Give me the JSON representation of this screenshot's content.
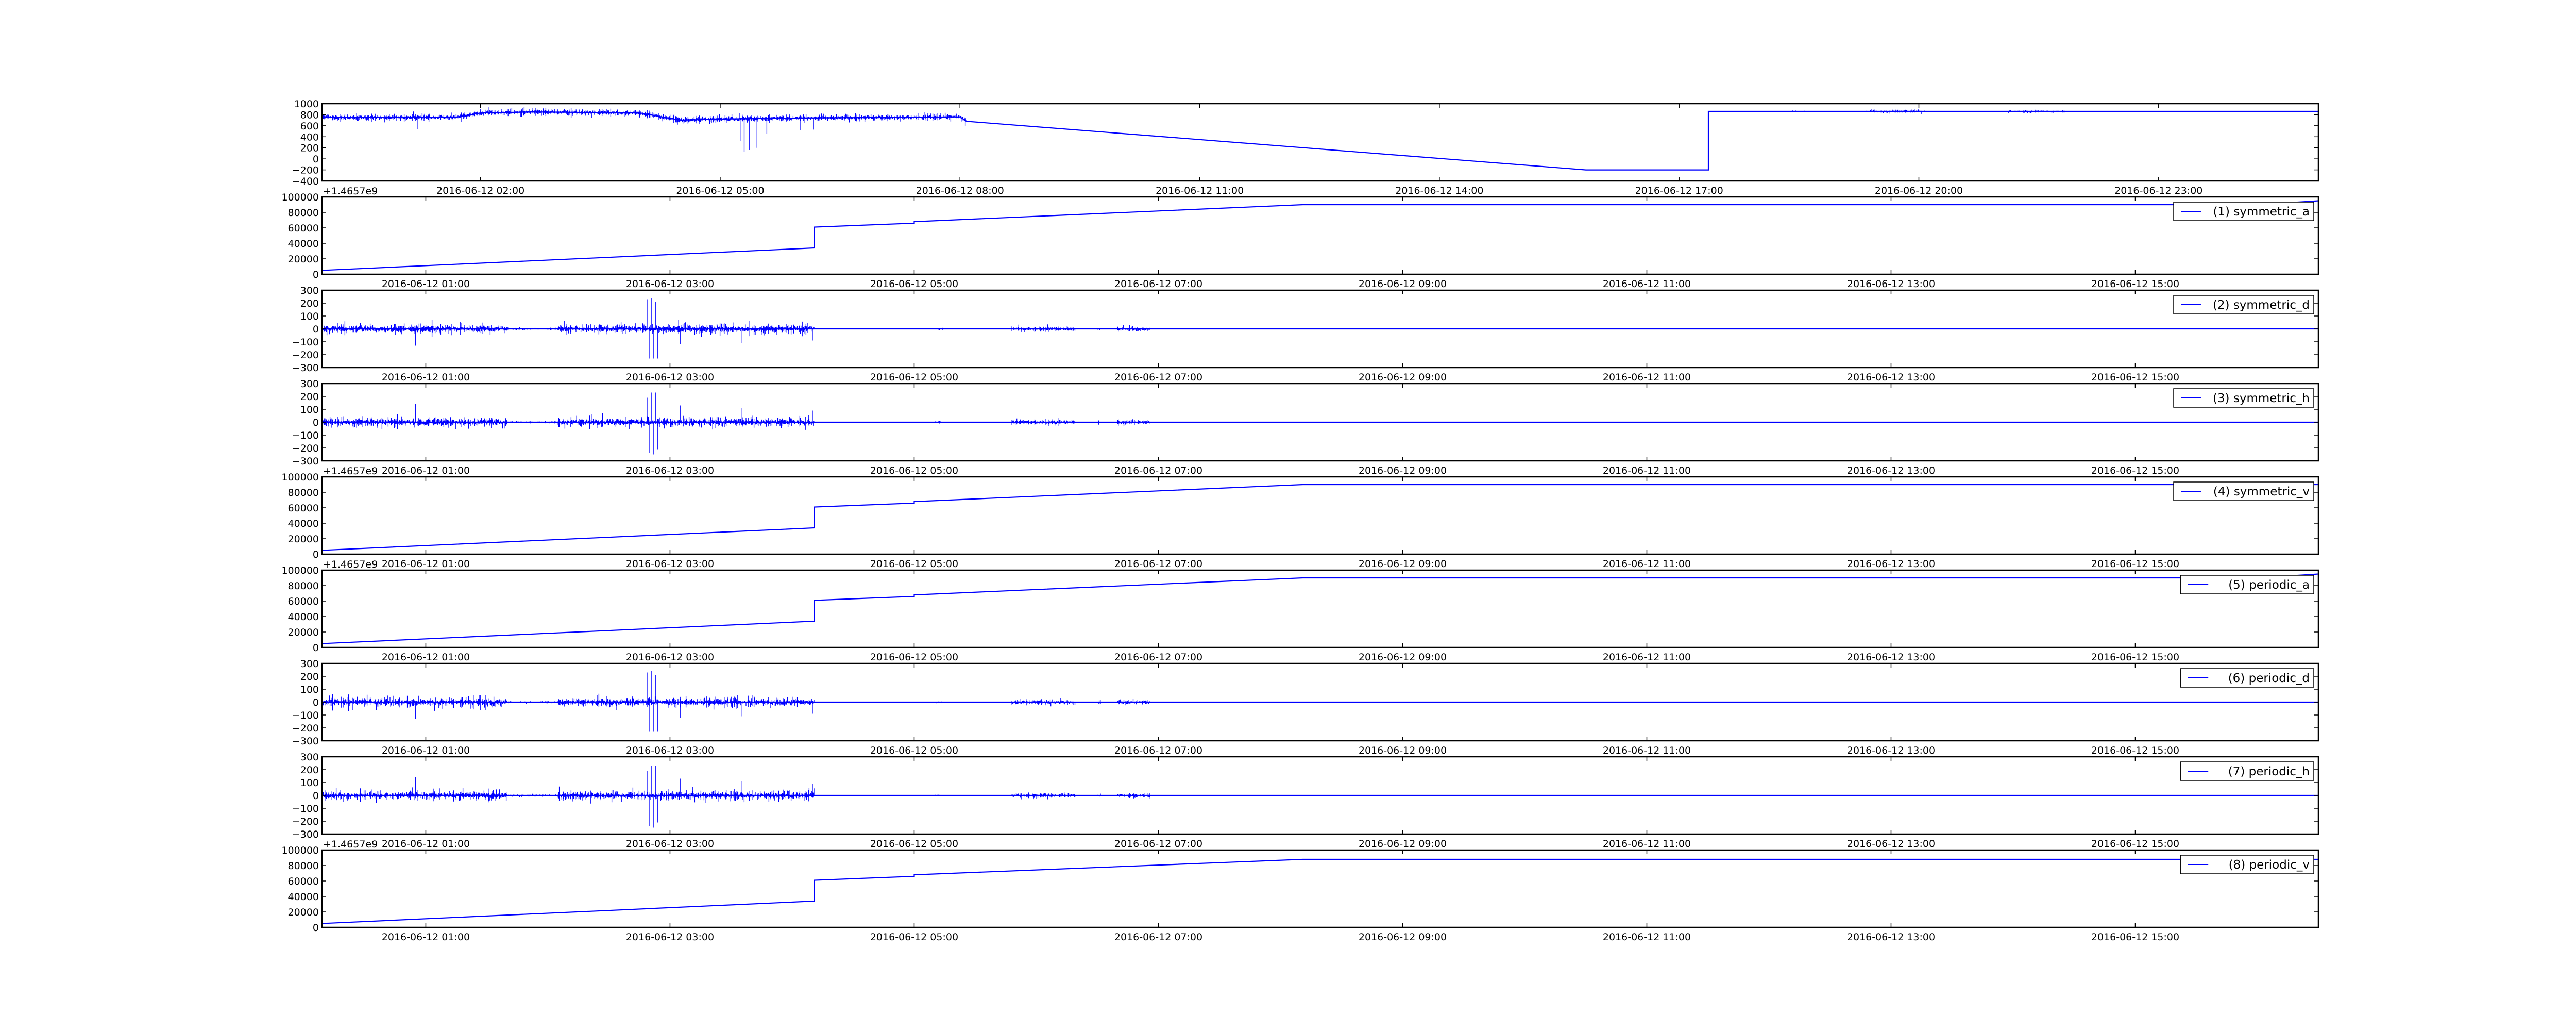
{
  "chart_data": [
    {
      "type": "line",
      "legend": "",
      "color": "#0000ff",
      "xlim": [
        "2016-06-12 00:01",
        "2016-06-13 01:00"
      ],
      "ylim": [
        -400,
        1000
      ],
      "xticks": [
        "2016-06-12 02:00",
        "2016-06-12 05:00",
        "2016-06-12 08:00",
        "2016-06-12 11:00",
        "2016-06-12 14:00",
        "2016-06-12 17:00",
        "2016-06-12 20:00",
        "2016-06-12 23:00"
      ],
      "yticks": [
        -400,
        -200,
        0,
        200,
        400,
        600,
        800,
        1000
      ],
      "offset_text": "",
      "trend": [
        [
          "2016-06-12 00:01",
          750
        ],
        [
          "2016-06-12 01:40",
          750
        ],
        [
          "2016-06-12 02:00",
          830
        ],
        [
          "2016-06-12 02:40",
          850
        ],
        [
          "2016-06-12 04:00",
          830
        ],
        [
          "2016-06-12 04:30",
          700
        ],
        [
          "2016-06-12 05:00",
          720
        ],
        [
          "2016-06-12 06:00",
          740
        ],
        [
          "2016-06-12 08:00",
          760
        ],
        [
          "2016-06-12 08:05",
          680
        ],
        [
          "2016-06-12 15:50",
          -200
        ],
        [
          "2016-06-12 17:22",
          -200
        ],
        [
          "2016-06-12 17:22",
          860
        ],
        [
          "2016-06-13 01:00",
          860
        ]
      ],
      "noise": [
        [
          "2016-06-12 00:01",
          "2016-06-12 08:05",
          55
        ],
        [
          "2016-06-12 18:25",
          "2016-06-12 18:40",
          12
        ],
        [
          "2016-06-12 19:20",
          "2016-06-12 20:05",
          30
        ],
        [
          "2016-06-12 20:40",
          "2016-06-12 20:45",
          10
        ],
        [
          "2016-06-12 21:05",
          "2016-06-12 21:50",
          22
        ]
      ],
      "spikes": [
        [
          "2016-06-12 01:13",
          540
        ],
        [
          "2016-06-12 04:32",
          640
        ],
        [
          "2016-06-12 05:15",
          320
        ],
        [
          "2016-06-12 05:18",
          130
        ],
        [
          "2016-06-12 05:22",
          160
        ],
        [
          "2016-06-12 05:27",
          200
        ],
        [
          "2016-06-12 05:35",
          450
        ],
        [
          "2016-06-12 06:00",
          520
        ],
        [
          "2016-06-12 06:10",
          530
        ],
        [
          "2016-06-12 08:04",
          600
        ]
      ]
    },
    {
      "type": "line",
      "legend": "(1) symmetric_a",
      "color": "#0000ff",
      "xlim": [
        "2016-06-12 00:09",
        "2016-06-12 16:30"
      ],
      "ylim": [
        0,
        100000
      ],
      "xticks": [
        "2016-06-12 01:00",
        "2016-06-12 03:00",
        "2016-06-12 05:00",
        "2016-06-12 07:00",
        "2016-06-12 09:00",
        "2016-06-12 11:00",
        "2016-06-12 13:00",
        "2016-06-12 15:00"
      ],
      "yticks": [
        0,
        20000,
        40000,
        60000,
        80000,
        100000
      ],
      "offset_text": "+1.4657e9",
      "trend": [
        [
          "2016-06-12 00:09",
          5000
        ],
        [
          "2016-06-12 04:11",
          34000
        ],
        [
          "2016-06-12 04:11",
          61000
        ],
        [
          "2016-06-12 05:00",
          66000
        ],
        [
          "2016-06-12 05:00",
          68000
        ],
        [
          "2016-06-12 08:11",
          90000
        ],
        [
          "2016-06-12 16:00",
          90000
        ],
        [
          "2016-06-12 16:30",
          95000
        ]
      ],
      "noise": [],
      "spikes": []
    },
    {
      "type": "line",
      "legend": "(2) symmetric_d",
      "color": "#0000ff",
      "xlim": [
        "2016-06-12 00:09",
        "2016-06-12 16:30"
      ],
      "ylim": [
        -300,
        300
      ],
      "xticks": [
        "2016-06-12 01:00",
        "2016-06-12 03:00",
        "2016-06-12 05:00",
        "2016-06-12 07:00",
        "2016-06-12 09:00",
        "2016-06-12 11:00",
        "2016-06-12 13:00",
        "2016-06-12 15:00"
      ],
      "yticks": [
        -300,
        -200,
        -100,
        0,
        100,
        200,
        300
      ],
      "offset_text": "",
      "trend": [
        [
          "2016-06-12 00:09",
          0
        ],
        [
          "2016-06-12 16:30",
          0
        ]
      ],
      "noise": [
        [
          "2016-06-12 00:09",
          "2016-06-12 01:40",
          35
        ],
        [
          "2016-06-12 01:40",
          "2016-06-12 02:05",
          8
        ],
        [
          "2016-06-12 02:05",
          "2016-06-12 04:11",
          35
        ],
        [
          "2016-06-12 05:10",
          "2016-06-12 05:14",
          8
        ],
        [
          "2016-06-12 05:48",
          "2016-06-12 06:19",
          20
        ],
        [
          "2016-06-12 06:30",
          "2016-06-12 06:32",
          12
        ],
        [
          "2016-06-12 06:40",
          "2016-06-12 06:56",
          18
        ]
      ],
      "spikes": [
        [
          "2016-06-12 00:55",
          -130
        ],
        [
          "2016-06-12 02:49",
          230
        ],
        [
          "2016-06-12 02:50",
          -230
        ],
        [
          "2016-06-12 02:51",
          240
        ],
        [
          "2016-06-12 02:52",
          -230
        ],
        [
          "2016-06-12 02:53",
          210
        ],
        [
          "2016-06-12 02:54",
          -230
        ],
        [
          "2016-06-12 03:05",
          -120
        ],
        [
          "2016-06-12 03:35",
          -110
        ],
        [
          "2016-06-12 04:10",
          -90
        ]
      ]
    },
    {
      "type": "line",
      "legend": "(3) symmetric_h",
      "color": "#0000ff",
      "xlim": [
        "2016-06-12 00:09",
        "2016-06-12 16:30"
      ],
      "ylim": [
        -300,
        300
      ],
      "xticks": [
        "2016-06-12 01:00",
        "2016-06-12 03:00",
        "2016-06-12 05:00",
        "2016-06-12 07:00",
        "2016-06-12 09:00",
        "2016-06-12 11:00",
        "2016-06-12 13:00",
        "2016-06-12 15:00"
      ],
      "yticks": [
        -300,
        -200,
        -100,
        0,
        100,
        200,
        300
      ],
      "offset_text": "",
      "trend": [
        [
          "2016-06-12 00:09",
          0
        ],
        [
          "2016-06-12 16:30",
          0
        ]
      ],
      "noise": [
        [
          "2016-06-12 00:09",
          "2016-06-12 01:40",
          35
        ],
        [
          "2016-06-12 01:40",
          "2016-06-12 02:05",
          8
        ],
        [
          "2016-06-12 02:05",
          "2016-06-12 04:11",
          35
        ],
        [
          "2016-06-12 05:10",
          "2016-06-12 05:14",
          8
        ],
        [
          "2016-06-12 05:48",
          "2016-06-12 06:19",
          20
        ],
        [
          "2016-06-12 06:30",
          "2016-06-12 06:32",
          12
        ],
        [
          "2016-06-12 06:40",
          "2016-06-12 06:56",
          18
        ]
      ],
      "spikes": [
        [
          "2016-06-12 00:55",
          140
        ],
        [
          "2016-06-12 02:49",
          190
        ],
        [
          "2016-06-12 02:50",
          -240
        ],
        [
          "2016-06-12 02:51",
          230
        ],
        [
          "2016-06-12 02:52",
          -250
        ],
        [
          "2016-06-12 02:53",
          230
        ],
        [
          "2016-06-12 02:54",
          -210
        ],
        [
          "2016-06-12 03:05",
          130
        ],
        [
          "2016-06-12 03:35",
          110
        ],
        [
          "2016-06-12 04:10",
          90
        ]
      ]
    },
    {
      "type": "line",
      "legend": "(4) symmetric_v",
      "color": "#0000ff",
      "xlim": [
        "2016-06-12 00:09",
        "2016-06-12 16:30"
      ],
      "ylim": [
        0,
        100000
      ],
      "xticks": [
        "2016-06-12 01:00",
        "2016-06-12 03:00",
        "2016-06-12 05:00",
        "2016-06-12 07:00",
        "2016-06-12 09:00",
        "2016-06-12 11:00",
        "2016-06-12 13:00",
        "2016-06-12 15:00"
      ],
      "yticks": [
        0,
        20000,
        40000,
        60000,
        80000,
        100000
      ],
      "offset_text": "+1.4657e9",
      "trend": [
        [
          "2016-06-12 00:09",
          5000
        ],
        [
          "2016-06-12 04:11",
          34000
        ],
        [
          "2016-06-12 04:11",
          61000
        ],
        [
          "2016-06-12 05:00",
          66000
        ],
        [
          "2016-06-12 05:00",
          68000
        ],
        [
          "2016-06-12 08:11",
          90000
        ],
        [
          "2016-06-12 16:30",
          90000
        ]
      ],
      "noise": [],
      "spikes": []
    },
    {
      "type": "line",
      "legend": "(5) periodic_a",
      "color": "#0000ff",
      "xlim": [
        "2016-06-12 00:09",
        "2016-06-12 16:30"
      ],
      "ylim": [
        0,
        100000
      ],
      "xticks": [
        "2016-06-12 01:00",
        "2016-06-12 03:00",
        "2016-06-12 05:00",
        "2016-06-12 07:00",
        "2016-06-12 09:00",
        "2016-06-12 11:00",
        "2016-06-12 13:00",
        "2016-06-12 15:00"
      ],
      "yticks": [
        0,
        20000,
        40000,
        60000,
        80000,
        100000
      ],
      "offset_text": "+1.4657e9",
      "trend": [
        [
          "2016-06-12 00:09",
          5000
        ],
        [
          "2016-06-12 04:11",
          34000
        ],
        [
          "2016-06-12 04:11",
          61000
        ],
        [
          "2016-06-12 05:00",
          66000
        ],
        [
          "2016-06-12 05:00",
          68000
        ],
        [
          "2016-06-12 08:11",
          90000
        ],
        [
          "2016-06-12 16:00",
          90000
        ],
        [
          "2016-06-12 16:30",
          95000
        ]
      ],
      "noise": [],
      "spikes": []
    },
    {
      "type": "line",
      "legend": "(6) periodic_d",
      "color": "#0000ff",
      "xlim": [
        "2016-06-12 00:09",
        "2016-06-12 16:30"
      ],
      "ylim": [
        -300,
        300
      ],
      "xticks": [
        "2016-06-12 01:00",
        "2016-06-12 03:00",
        "2016-06-12 05:00",
        "2016-06-12 07:00",
        "2016-06-12 09:00",
        "2016-06-12 11:00",
        "2016-06-12 13:00",
        "2016-06-12 15:00"
      ],
      "yticks": [
        -300,
        -200,
        -100,
        0,
        100,
        200,
        300
      ],
      "offset_text": "",
      "trend": [
        [
          "2016-06-12 00:09",
          0
        ],
        [
          "2016-06-12 16:30",
          0
        ]
      ],
      "noise": [
        [
          "2016-06-12 00:09",
          "2016-06-12 01:40",
          35
        ],
        [
          "2016-06-12 01:40",
          "2016-06-12 02:05",
          8
        ],
        [
          "2016-06-12 02:05",
          "2016-06-12 04:11",
          35
        ],
        [
          "2016-06-12 05:10",
          "2016-06-12 05:14",
          8
        ],
        [
          "2016-06-12 05:48",
          "2016-06-12 06:19",
          20
        ],
        [
          "2016-06-12 06:30",
          "2016-06-12 06:32",
          12
        ],
        [
          "2016-06-12 06:40",
          "2016-06-12 06:56",
          18
        ]
      ],
      "spikes": [
        [
          "2016-06-12 00:55",
          -130
        ],
        [
          "2016-06-12 02:49",
          230
        ],
        [
          "2016-06-12 02:50",
          -230
        ],
        [
          "2016-06-12 02:51",
          240
        ],
        [
          "2016-06-12 02:52",
          -230
        ],
        [
          "2016-06-12 02:53",
          210
        ],
        [
          "2016-06-12 02:54",
          -230
        ],
        [
          "2016-06-12 03:05",
          -120
        ],
        [
          "2016-06-12 03:35",
          -110
        ],
        [
          "2016-06-12 04:10",
          -90
        ]
      ]
    },
    {
      "type": "line",
      "legend": "(7) periodic_h",
      "color": "#0000ff",
      "xlim": [
        "2016-06-12 00:09",
        "2016-06-12 16:30"
      ],
      "ylim": [
        -300,
        300
      ],
      "xticks": [
        "2016-06-12 01:00",
        "2016-06-12 03:00",
        "2016-06-12 05:00",
        "2016-06-12 07:00",
        "2016-06-12 09:00",
        "2016-06-12 11:00",
        "2016-06-12 13:00",
        "2016-06-12 15:00"
      ],
      "yticks": [
        -300,
        -200,
        -100,
        0,
        100,
        200,
        300
      ],
      "offset_text": "",
      "trend": [
        [
          "2016-06-12 00:09",
          0
        ],
        [
          "2016-06-12 16:30",
          0
        ]
      ],
      "noise": [
        [
          "2016-06-12 00:09",
          "2016-06-12 01:40",
          35
        ],
        [
          "2016-06-12 01:40",
          "2016-06-12 02:05",
          8
        ],
        [
          "2016-06-12 02:05",
          "2016-06-12 04:11",
          35
        ],
        [
          "2016-06-12 05:10",
          "2016-06-12 05:14",
          8
        ],
        [
          "2016-06-12 05:48",
          "2016-06-12 06:19",
          20
        ],
        [
          "2016-06-12 06:30",
          "2016-06-12 06:32",
          12
        ],
        [
          "2016-06-12 06:40",
          "2016-06-12 06:56",
          18
        ]
      ],
      "spikes": [
        [
          "2016-06-12 00:55",
          140
        ],
        [
          "2016-06-12 02:49",
          190
        ],
        [
          "2016-06-12 02:50",
          -240
        ],
        [
          "2016-06-12 02:51",
          230
        ],
        [
          "2016-06-12 02:52",
          -250
        ],
        [
          "2016-06-12 02:53",
          230
        ],
        [
          "2016-06-12 02:54",
          -210
        ],
        [
          "2016-06-12 03:05",
          130
        ],
        [
          "2016-06-12 03:35",
          110
        ],
        [
          "2016-06-12 04:10",
          90
        ]
      ]
    },
    {
      "type": "line",
      "legend": "(8) periodic_v",
      "color": "#0000ff",
      "xlim": [
        "2016-06-12 00:09",
        "2016-06-12 16:30"
      ],
      "ylim": [
        0,
        100000
      ],
      "xticks": [
        "2016-06-12 01:00",
        "2016-06-12 03:00",
        "2016-06-12 05:00",
        "2016-06-12 07:00",
        "2016-06-12 09:00",
        "2016-06-12 11:00",
        "2016-06-12 13:00",
        "2016-06-12 15:00"
      ],
      "yticks": [
        0,
        20000,
        40000,
        60000,
        80000,
        100000
      ],
      "offset_text": "+1.4657e9",
      "trend": [
        [
          "2016-06-12 00:09",
          5000
        ],
        [
          "2016-06-12 04:11",
          34000
        ],
        [
          "2016-06-12 04:11",
          61000
        ],
        [
          "2016-06-12 05:00",
          66000
        ],
        [
          "2016-06-12 05:00",
          68000
        ],
        [
          "2016-06-12 08:11",
          88000
        ],
        [
          "2016-06-12 16:30",
          88000
        ]
      ],
      "noise": [],
      "spikes": []
    }
  ]
}
